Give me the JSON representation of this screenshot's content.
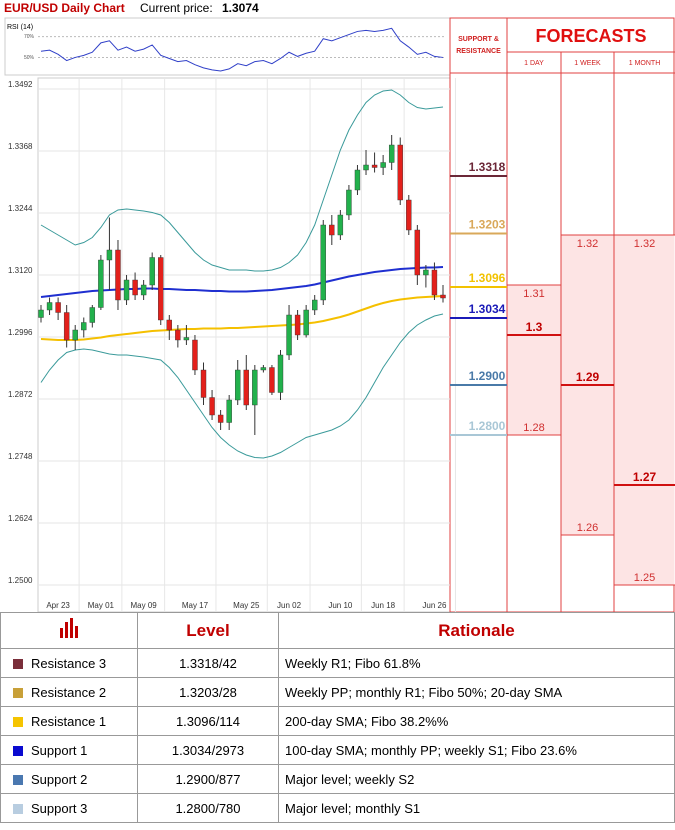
{
  "header": {
    "title": "EUR/USD Daily Chart",
    "price_label": "Current price:",
    "price": 1.3074
  },
  "chart_data": {
    "type": "candlestick",
    "categories": [
      null,
      null,
      "Apr 23",
      null,
      null,
      null,
      null,
      "May 01",
      null,
      null,
      null,
      null,
      "May 09",
      null,
      null,
      null,
      null,
      null,
      "May 17",
      null,
      null,
      null,
      null,
      null,
      "May 25",
      null,
      null,
      null,
      null,
      "Jun 02",
      null,
      null,
      null,
      null,
      null,
      "Jun 10",
      null,
      null,
      null,
      null,
      "Jun 18",
      null,
      null,
      null,
      null,
      null,
      "Jun 26",
      null
    ],
    "open": [
      1.3035,
      1.305,
      1.3065,
      1.3045,
      1.299,
      1.301,
      1.3025,
      1.3055,
      1.315,
      1.317,
      1.307,
      1.311,
      1.308,
      1.31,
      1.3155,
      1.303,
      1.301,
      1.299,
      1.299,
      1.293,
      1.2875,
      1.284,
      1.2825,
      1.287,
      1.293,
      1.286,
      1.293,
      1.2935,
      1.2885,
      1.296,
      1.304,
      1.3,
      1.305,
      1.307,
      1.322,
      1.32,
      1.324,
      1.329,
      1.333,
      1.334,
      1.3335,
      1.3345,
      1.338,
      1.327,
      1.321,
      1.312,
      1.313,
      1.308
    ],
    "high": [
      1.306,
      1.3075,
      1.3075,
      1.306,
      1.302,
      1.3035,
      1.306,
      1.316,
      1.3235,
      1.319,
      1.312,
      1.3125,
      1.311,
      1.3165,
      1.316,
      1.304,
      1.302,
      1.302,
      1.3,
      1.2945,
      1.289,
      1.285,
      1.288,
      1.295,
      1.296,
      1.294,
      1.294,
      1.294,
      1.297,
      1.306,
      1.305,
      1.306,
      1.308,
      1.323,
      1.324,
      1.325,
      1.33,
      1.334,
      1.337,
      1.3365,
      1.336,
      1.34,
      1.3395,
      1.328,
      1.322,
      1.314,
      1.3145,
      1.31
    ],
    "low": [
      1.3025,
      1.304,
      1.303,
      1.2975,
      1.297,
      1.2995,
      1.3015,
      1.305,
      1.309,
      1.305,
      1.306,
      1.307,
      1.307,
      1.309,
      1.302,
      1.299,
      1.2975,
      1.298,
      1.292,
      1.286,
      1.283,
      1.281,
      1.281,
      1.286,
      1.285,
      1.28,
      1.2925,
      1.288,
      1.287,
      1.295,
      1.299,
      1.2995,
      1.304,
      1.306,
      1.318,
      1.319,
      1.323,
      1.328,
      1.332,
      1.3325,
      1.332,
      1.333,
      1.326,
      1.32,
      1.31,
      1.3095,
      1.307,
      1.3065
    ],
    "close": [
      1.305,
      1.3065,
      1.3045,
      1.299,
      1.301,
      1.3025,
      1.3055,
      1.315,
      1.317,
      1.307,
      1.311,
      1.308,
      1.31,
      1.3155,
      1.303,
      1.301,
      1.299,
      1.2995,
      1.293,
      1.2875,
      1.284,
      1.2825,
      1.287,
      1.293,
      1.286,
      1.293,
      1.2935,
      1.2885,
      1.296,
      1.304,
      1.3,
      1.305,
      1.307,
      1.322,
      1.32,
      1.324,
      1.329,
      1.333,
      1.334,
      1.3335,
      1.3345,
      1.338,
      1.327,
      1.321,
      1.312,
      1.313,
      1.308,
      1.3074
    ],
    "up_color": "#22b14c",
    "down_color": "#e3201b",
    "ylim": [
      1.25,
      1.3492
    ],
    "yticks": [
      1.3492,
      1.3368,
      1.3244,
      {
        "value": 1.312,
        "label": "1.3120"
      },
      1.2996,
      1.2872,
      1.2748,
      1.2624,
      {
        "value": 1.25,
        "label": "1.2500"
      }
    ],
    "grid": true,
    "lines": [
      {
        "color": "#1f2fd0",
        "values": [
          1.3076,
          1.3078,
          1.308,
          1.3082,
          1.3084,
          1.3086,
          1.3088,
          1.3089,
          1.309,
          1.3091,
          1.3092,
          1.3092,
          1.3093,
          1.3093,
          1.3092,
          1.3092,
          1.3091,
          1.309,
          1.309,
          1.3089,
          1.3088,
          1.3088,
          1.3087,
          1.3087,
          1.3087,
          1.3088,
          1.3089,
          1.309,
          1.3092,
          1.3094,
          1.3096,
          1.3098,
          1.3101,
          1.3105,
          1.3109,
          1.3113,
          1.3117,
          1.312,
          1.3123,
          1.3126,
          1.3128,
          1.313,
          1.3132,
          1.3133,
          1.3134,
          1.3135,
          1.3135,
          1.3136
        ]
      },
      {
        "color": "#f5c000",
        "values": [
          1.2992,
          1.2991,
          1.299,
          1.299,
          1.299,
          1.2991,
          1.2993,
          1.2995,
          1.2998,
          1.3,
          1.3002,
          1.3004,
          1.3006,
          1.3008,
          1.3009,
          1.301,
          1.3011,
          1.3012,
          1.3012,
          1.3013,
          1.3013,
          1.3013,
          1.3014,
          1.3014,
          1.3015,
          1.3016,
          1.3017,
          1.3018,
          1.3019,
          1.302,
          1.3021,
          1.3023,
          1.3025,
          1.3028,
          1.3032,
          1.3036,
          1.3041,
          1.3047,
          1.3053,
          1.3059,
          1.3064,
          1.3068,
          1.3071,
          1.3073,
          1.3075,
          1.3076,
          1.3077,
          1.3078
        ]
      },
      {
        "color": "#3a9a9a",
        "values": [
          1.322,
          1.321,
          1.32,
          1.319,
          1.318,
          1.3185,
          1.3195,
          1.3215,
          1.324,
          1.325,
          1.3252,
          1.325,
          1.3248,
          1.3245,
          1.324,
          1.3225,
          1.3205,
          1.3185,
          1.3165,
          1.315,
          1.314,
          1.3135,
          1.313,
          1.313,
          1.313,
          1.3128,
          1.3128,
          1.313,
          1.3135,
          1.3145,
          1.316,
          1.3185,
          1.322,
          1.327,
          1.332,
          1.337,
          1.341,
          1.344,
          1.3465,
          1.348,
          1.3488,
          1.349,
          1.348,
          1.3465,
          1.3455,
          1.3452,
          1.3454,
          1.3456
        ]
      },
      {
        "color": "#3a9a9a",
        "values": [
          1.2905,
          1.293,
          1.295,
          1.2965,
          1.297,
          1.2972,
          1.297,
          1.2966,
          1.2962,
          1.296,
          1.296,
          1.2958,
          1.2956,
          1.2953,
          1.295,
          1.2935,
          1.2915,
          1.289,
          1.2865,
          1.284,
          1.2815,
          1.2795,
          1.278,
          1.2768,
          1.276,
          1.2755,
          1.2754,
          1.2758,
          1.2765,
          1.2775,
          1.2785,
          1.2795,
          1.28,
          1.2805,
          1.281,
          1.2818,
          1.283,
          1.285,
          1.2875,
          1.2905,
          1.2935,
          1.296,
          1.2985,
          1.3005,
          1.302,
          1.303,
          1.3038,
          1.3042
        ]
      }
    ],
    "rsi": {
      "label": "RSI (14)",
      "color": "#3040c8",
      "ylim": [
        36,
        86
      ],
      "yticks": [
        {
          "value": 70,
          "label": "70%"
        },
        {
          "value": 50,
          "label": "50%"
        }
      ],
      "values": [
        56,
        57,
        53,
        47,
        50,
        52,
        55,
        64,
        66,
        57,
        60,
        56,
        58,
        62,
        52,
        49,
        46,
        47,
        43,
        40,
        38,
        37,
        39,
        44,
        42,
        46,
        47,
        44,
        49,
        55,
        51,
        54,
        56,
        68,
        66,
        69,
        72,
        75,
        76,
        75,
        76,
        78,
        66,
        60,
        53,
        55,
        51,
        50
      ]
    }
  },
  "levels": {
    "title": "SUPPORT & RESISTANCE",
    "items": [
      {
        "value": 1.3318,
        "color": "#6b2737"
      },
      {
        "value": 1.3203,
        "color": "#d9a85a"
      },
      {
        "value": 1.3096,
        "color": "#f2c200"
      },
      {
        "value": 1.3034,
        "color": "#1a1ab8"
      },
      {
        "value": 1.29,
        "label": "1.2900",
        "color": "#4a7aa8"
      },
      {
        "value": 1.28,
        "label": "1.2800",
        "color": "#a9c7d6"
      }
    ]
  },
  "forecasts": {
    "title": "FORECASTS",
    "horizons": [
      {
        "name": "1 DAY",
        "high": 1.31,
        "mid": 1.3,
        "low": 1.28
      },
      {
        "name": "1 WEEK",
        "high": 1.32,
        "mid": 1.29,
        "low": 1.26
      },
      {
        "name": "1 MONTH",
        "high": 1.32,
        "mid": 1.27,
        "low": 1.25
      }
    ]
  },
  "table": {
    "columns": [
      "Level",
      "Rationale"
    ],
    "rows": [
      {
        "name": "Resistance 3",
        "color": "#7a2e3a",
        "level": "1.3318/42",
        "rationale": "Weekly R1; Fibo 61.8%"
      },
      {
        "name": "Resistance 2",
        "color": "#c8a038",
        "level": "1.3203/28",
        "rationale": "Weekly PP; monthly R1; Fibo 50%; 20-day SMA"
      },
      {
        "name": "Resistance 1",
        "color": "#f5c400",
        "level": "1.3096/114",
        "rationale": "200-day SMA; Fibo 38.2%%"
      },
      {
        "name": "Support 1",
        "color": "#0a0ad0",
        "level": "1.3034/2973",
        "rationale": "100-day SMA; monthly PP; weekly S1; Fibo 23.6%"
      },
      {
        "name": "Support 2",
        "color": "#4a78b0",
        "level": "1.2900/877",
        "rationale": "Major level; weekly S2"
      },
      {
        "name": "Support 3",
        "color": "#b8cde0",
        "level": "1.2800/780",
        "rationale": "Major level; monthly S1"
      }
    ]
  }
}
